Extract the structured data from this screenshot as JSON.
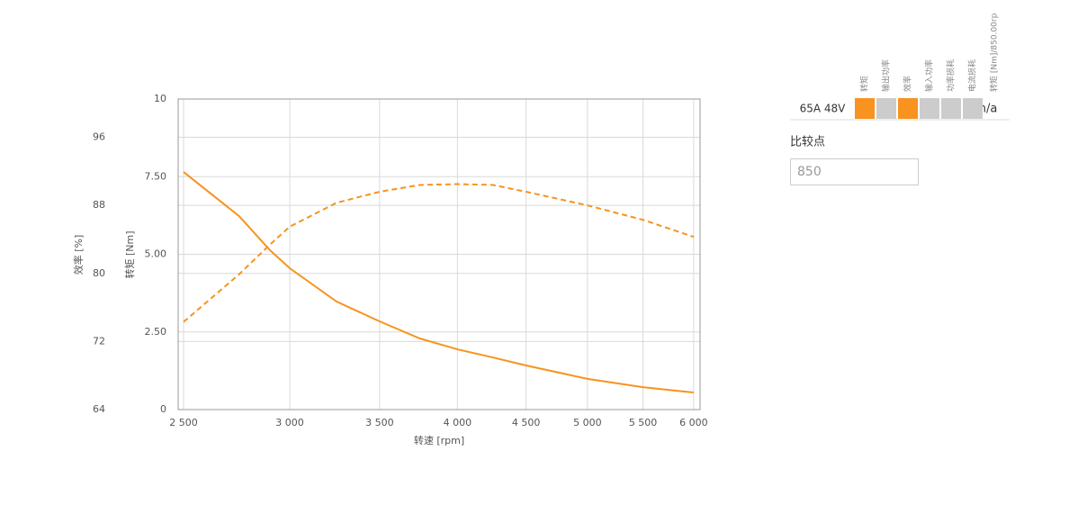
{
  "chart_data": {
    "type": "line",
    "xlabel": "转速 [rpm]",
    "ylabel": "转矩 [Nm]",
    "y2label": "效率 [%]",
    "xlog": true,
    "grid": true,
    "xlim": [
      2477,
      6066
    ],
    "xticks": [
      {
        "value": 2500,
        "label": "2 500"
      },
      {
        "value": 3000,
        "label": "3 000"
      },
      {
        "value": 3500,
        "label": "3 500"
      },
      {
        "value": 4000,
        "label": "4 000"
      },
      {
        "value": 4500,
        "label": "4 500"
      },
      {
        "value": 5000,
        "label": "5 000"
      },
      {
        "value": 5500,
        "label": "5 500"
      },
      {
        "value": 6000,
        "label": "6 000"
      }
    ],
    "ylim": [
      0,
      10
    ],
    "yticks": [
      0,
      {
        "value": 2.5,
        "label": "2.50"
      },
      {
        "value": 5,
        "label": "5.00"
      },
      {
        "value": 7.5,
        "label": "7.50"
      },
      10
    ],
    "y2lim": [
      64,
      100.5
    ],
    "y2ticks": [
      64,
      72,
      80,
      88,
      96
    ],
    "x": [
      2500,
      2750,
      2900,
      3000,
      3250,
      3500,
      3750,
      4000,
      4250,
      4500,
      5000,
      5500,
      6000
    ],
    "series": [
      {
        "color": "#f7931e",
        "dash": false,
        "values": [
          7.65,
          6.23,
          5.13,
          4.55,
          3.48,
          2.84,
          2.29,
          1.94,
          1.68,
          1.42,
          0.99,
          0.72,
          0.55
        ]
      },
      {
        "color": "#f7931e",
        "dash": true,
        "axis": "y2",
        "values": [
          74.3,
          79.9,
          83.4,
          85.5,
          88.3,
          89.6,
          90.4,
          90.5,
          90.4,
          89.6,
          88.0,
          86.3,
          84.3
        ]
      }
    ]
  },
  "panel": {
    "headers": [
      "转矩",
      "输出功率",
      "效率",
      "输入功率",
      "功率损耗",
      "电流损耗",
      "转矩 [Nm]/850.00rp"
    ],
    "row_label": "65A 48V",
    "active": [
      true,
      false,
      true,
      false,
      false,
      false
    ],
    "active_color": "#f7931e",
    "inactive_color": "#cccccc",
    "row_value": "n/a",
    "compare_label": "比较点",
    "compare_value": "850"
  }
}
